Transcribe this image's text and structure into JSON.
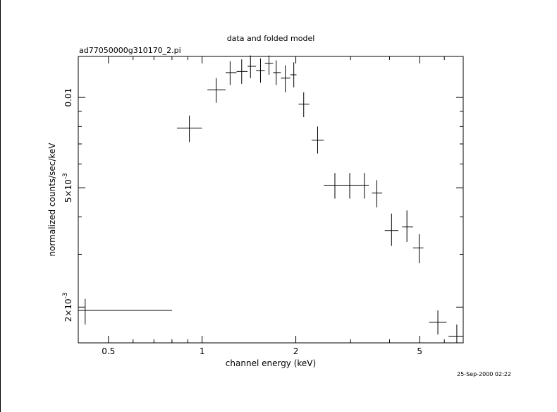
{
  "chart_data": {
    "type": "scatter",
    "title": "data and folded model",
    "subtitle": "ad77050000g310170_2.pi",
    "xlabel": "channel energy (keV)",
    "ylabel": "normalized counts/sec/keV",
    "x_scale": "log",
    "y_scale": "log",
    "xlim": [
      0.4,
      6.9
    ],
    "ylim": [
      0.00152,
      0.0137
    ],
    "x_ticks": [
      {
        "value": 0.5,
        "label": "0.5"
      },
      {
        "value": 1,
        "label": "1"
      },
      {
        "value": 2,
        "label": "2"
      },
      {
        "value": 5,
        "label": "5"
      }
    ],
    "y_ticks": [
      {
        "value": 0.002,
        "base": "2",
        "exp": "-3"
      },
      {
        "value": 0.005,
        "base": "5",
        "exp": "-3"
      },
      {
        "value": 0.01,
        "plain": "0.01"
      }
    ],
    "series": [
      {
        "points": [
          {
            "x": 0.421,
            "x_lo": 0.4,
            "x_hi": 0.8,
            "y": 0.00195,
            "y_lo": 0.00175,
            "y_hi": 0.00213
          },
          {
            "x": 0.91,
            "x_lo": 0.83,
            "x_hi": 0.999,
            "y": 0.0079,
            "y_lo": 0.0071,
            "y_hi": 0.0087
          },
          {
            "x": 1.11,
            "x_lo": 1.04,
            "x_hi": 1.19,
            "y": 0.0106,
            "y_lo": 0.0096,
            "y_hi": 0.0116
          },
          {
            "x": 1.23,
            "x_lo": 1.19,
            "x_hi": 1.29,
            "y": 0.0121,
            "y_lo": 0.011,
            "y_hi": 0.0132
          },
          {
            "x": 1.34,
            "x_lo": 1.29,
            "x_hi": 1.4,
            "y": 0.0122,
            "y_lo": 0.0111,
            "y_hi": 0.0134
          },
          {
            "x": 1.43,
            "x_lo": 1.4,
            "x_hi": 1.49,
            "y": 0.0127,
            "y_lo": 0.0116,
            "y_hi": 0.0138
          },
          {
            "x": 1.54,
            "x_lo": 1.49,
            "x_hi": 1.59,
            "y": 0.0123,
            "y_lo": 0.0112,
            "y_hi": 0.0135
          },
          {
            "x": 1.64,
            "x_lo": 1.59,
            "x_hi": 1.69,
            "y": 0.013,
            "y_lo": 0.0119,
            "y_hi": 0.0138
          },
          {
            "x": 1.73,
            "x_lo": 1.69,
            "x_hi": 1.79,
            "y": 0.0121,
            "y_lo": 0.011,
            "y_hi": 0.0133
          },
          {
            "x": 1.85,
            "x_lo": 1.79,
            "x_hi": 1.92,
            "y": 0.0116,
            "y_lo": 0.0104,
            "y_hi": 0.0128
          },
          {
            "x": 1.97,
            "x_lo": 1.92,
            "x_hi": 2.01,
            "y": 0.0119,
            "y_lo": 0.0108,
            "y_hi": 0.0131
          },
          {
            "x": 2.12,
            "x_lo": 2.04,
            "x_hi": 2.21,
            "y": 0.0095,
            "y_lo": 0.0086,
            "y_hi": 0.0104
          },
          {
            "x": 2.35,
            "x_lo": 2.25,
            "x_hi": 2.46,
            "y": 0.0072,
            "y_lo": 0.0065,
            "y_hi": 0.008
          },
          {
            "x": 2.67,
            "x_lo": 2.46,
            "x_hi": 2.83,
            "y": 0.0051,
            "y_lo": 0.0046,
            "y_hi": 0.0056
          },
          {
            "x": 2.98,
            "x_lo": 2.83,
            "x_hi": 3.17,
            "y": 0.0051,
            "y_lo": 0.0046,
            "y_hi": 0.0056
          },
          {
            "x": 3.32,
            "x_lo": 3.17,
            "x_hi": 3.43,
            "y": 0.0051,
            "y_lo": 0.0046,
            "y_hi": 0.0056
          },
          {
            "x": 3.64,
            "x_lo": 3.51,
            "x_hi": 3.79,
            "y": 0.0048,
            "y_lo": 0.0043,
            "y_hi": 0.0053
          },
          {
            "x": 4.06,
            "x_lo": 3.86,
            "x_hi": 4.27,
            "y": 0.0036,
            "y_lo": 0.0032,
            "y_hi": 0.0041
          },
          {
            "x": 4.55,
            "x_lo": 4.39,
            "x_hi": 4.76,
            "y": 0.0037,
            "y_lo": 0.0033,
            "y_hi": 0.0042
          },
          {
            "x": 4.98,
            "x_lo": 4.76,
            "x_hi": 5.14,
            "y": 0.00315,
            "y_lo": 0.0028,
            "y_hi": 0.0035
          },
          {
            "x": 5.72,
            "x_lo": 5.36,
            "x_hi": 6.1,
            "y": 0.00178,
            "y_lo": 0.00162,
            "y_hi": 0.00195
          },
          {
            "x": 6.58,
            "x_lo": 6.19,
            "x_hi": 6.88,
            "y": 0.0016,
            "y_lo": 0.00152,
            "y_hi": 0.00175
          }
        ]
      }
    ]
  },
  "footer": {
    "timestamp": "25-Sep-2000 02:22"
  }
}
